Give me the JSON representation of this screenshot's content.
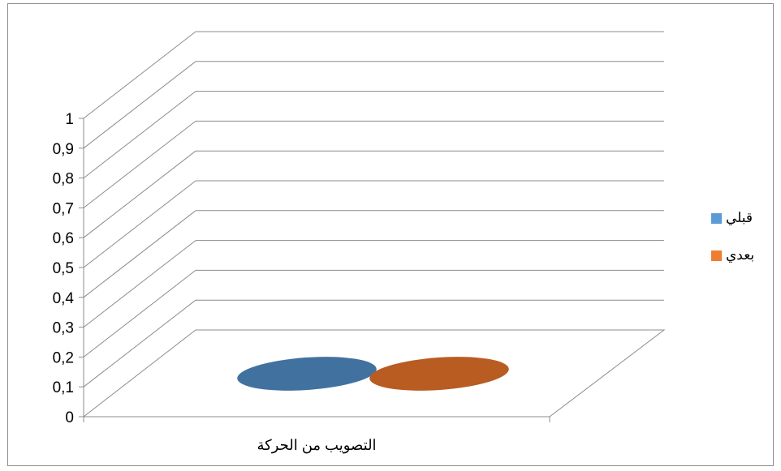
{
  "chart_data": {
    "type": "bar",
    "categories": [
      "التصويب من الحركة"
    ],
    "series": [
      {
        "name": "قبلي",
        "values": [
          0
        ],
        "color": "#4472c4",
        "legend_color": "#5b9bd5",
        "fill": "#41729f"
      },
      {
        "name": "بعدي",
        "values": [
          0
        ],
        "color": "#ed7d31",
        "legend_color": "#ed7d31",
        "fill": "#b85c22"
      }
    ],
    "y_ticks": [
      "0",
      "0,1",
      "0,2",
      "0,3",
      "0,4",
      "0,5",
      "0,6",
      "0,7",
      "0,8",
      "0,9",
      "1"
    ],
    "ylim": [
      0,
      1
    ],
    "title": "",
    "xlabel": "",
    "ylabel": "",
    "grid": true,
    "legend_position": "right",
    "style": "3d"
  }
}
